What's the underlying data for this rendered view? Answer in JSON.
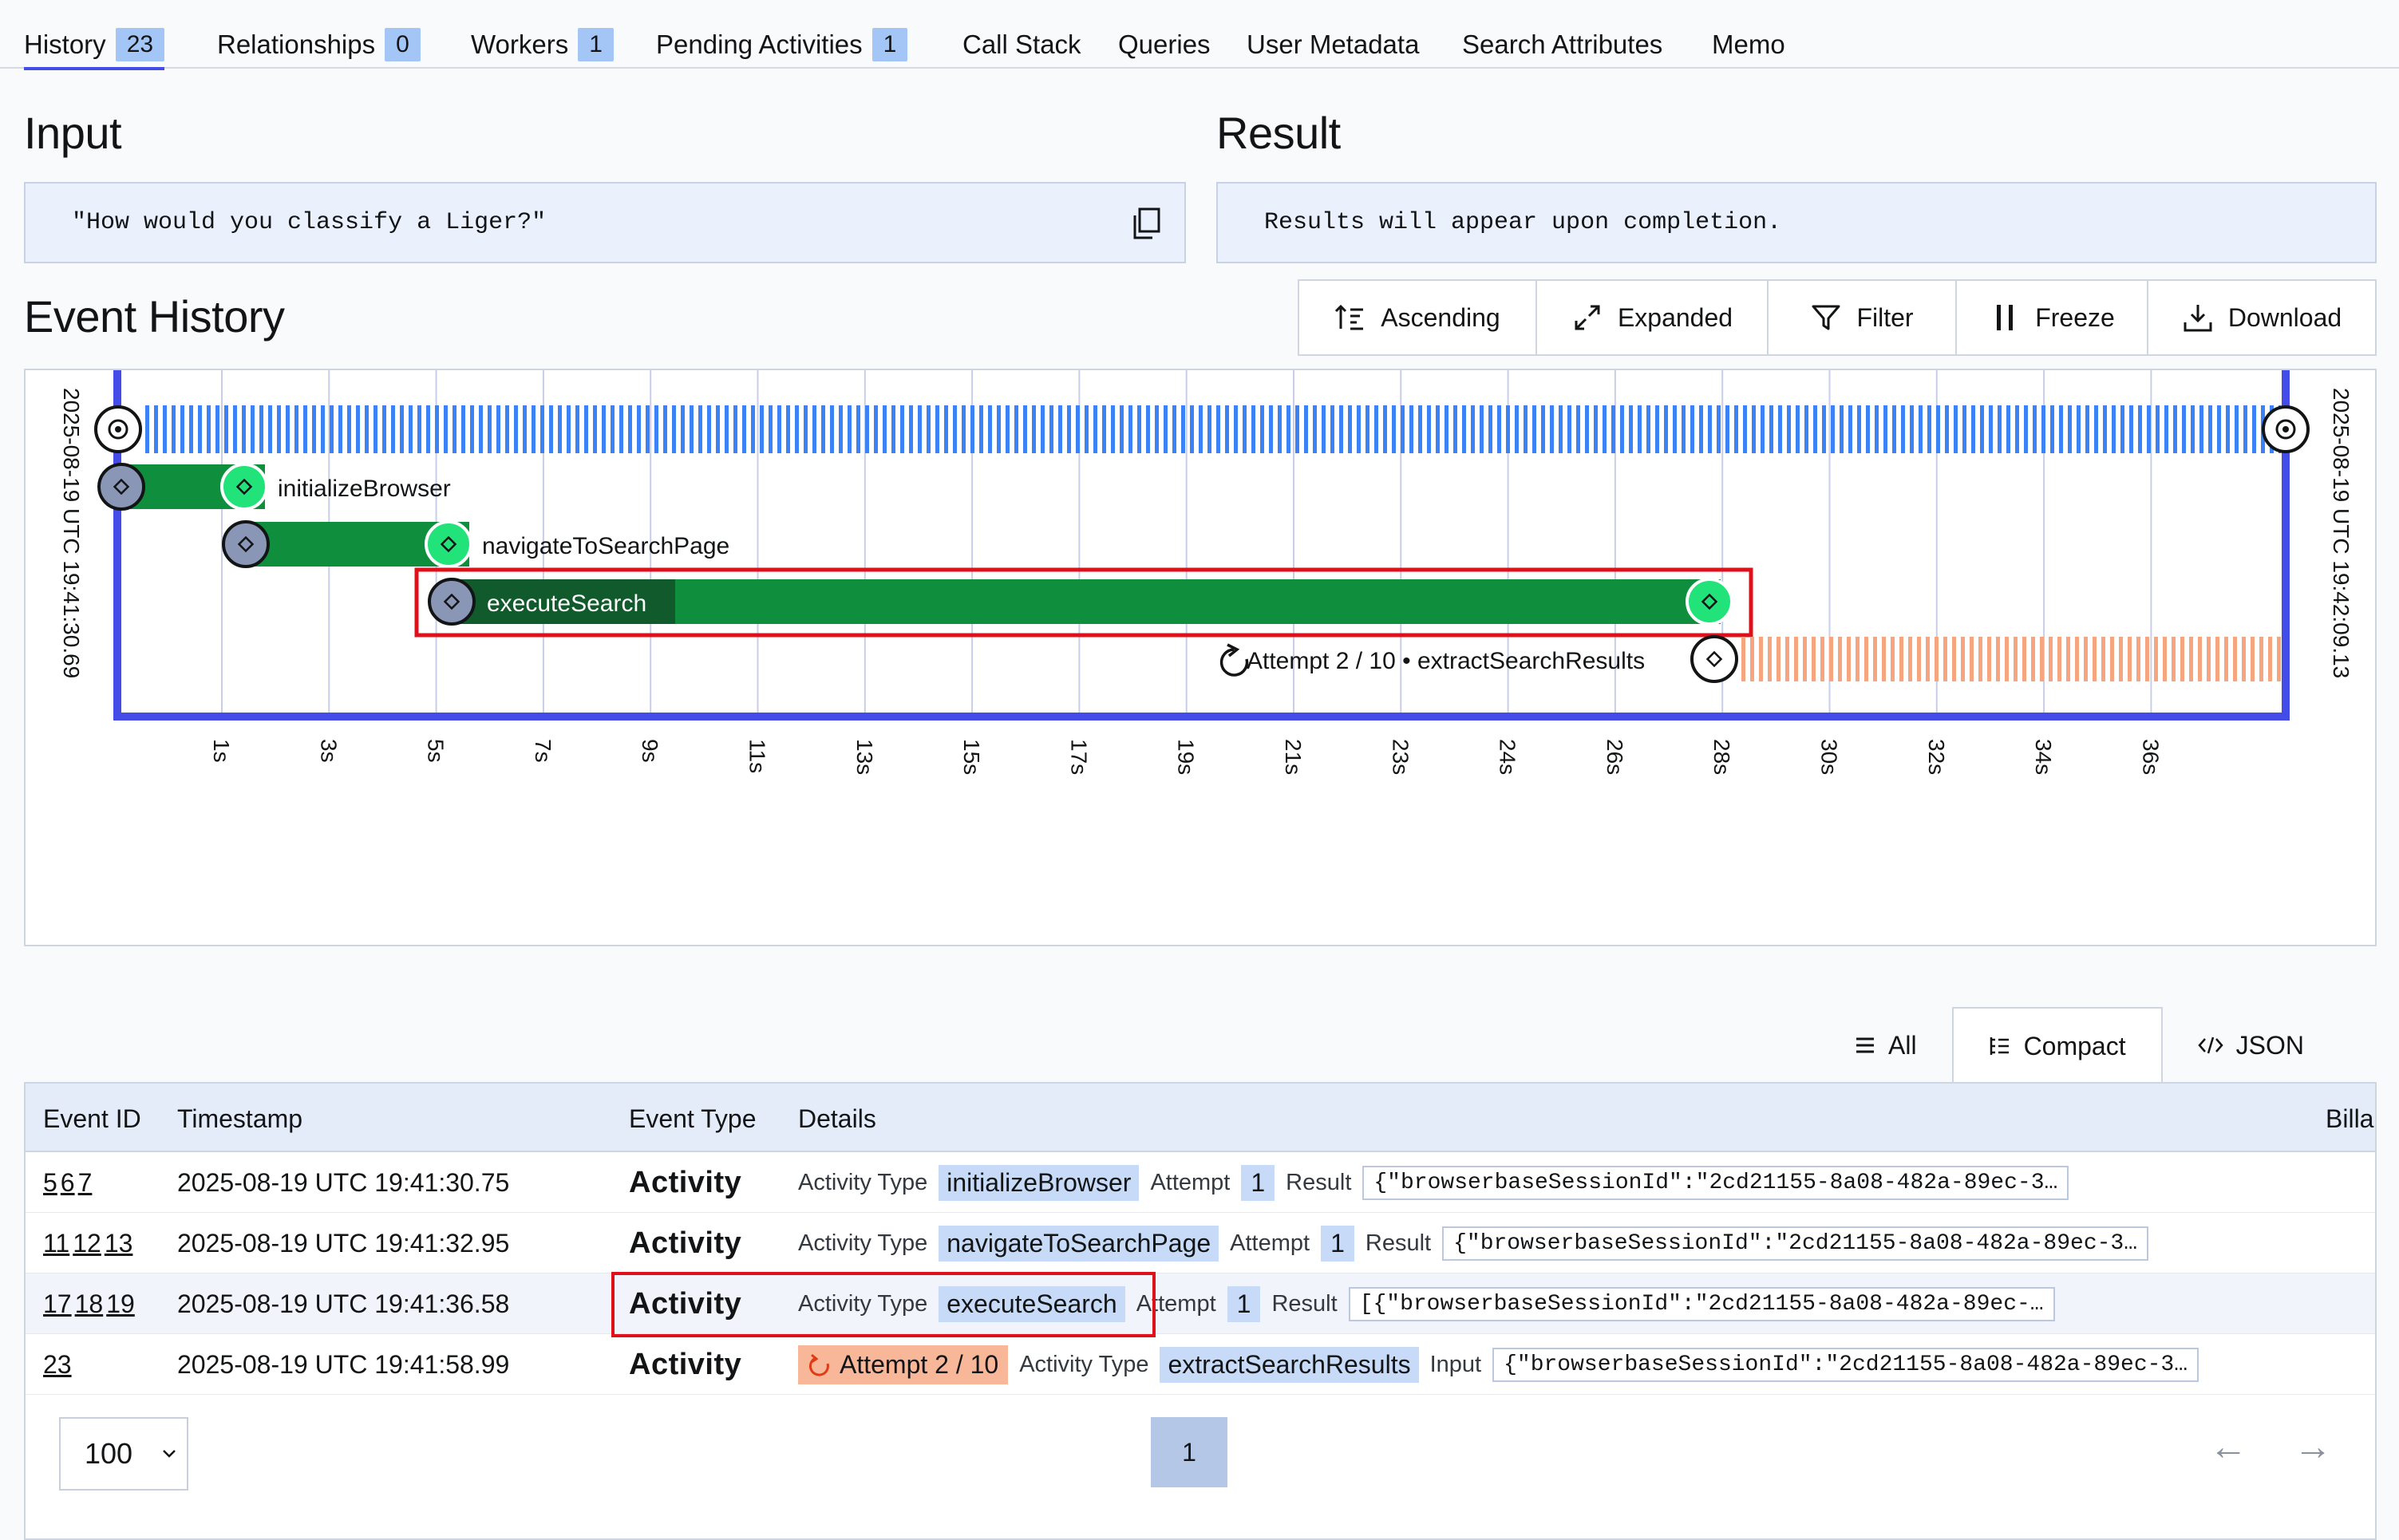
{
  "tabs": [
    {
      "label": "History",
      "badge": "23"
    },
    {
      "label": "Relationships",
      "badge": "0"
    },
    {
      "label": "Workers",
      "badge": "1"
    },
    {
      "label": "Pending Activities",
      "badge": "1"
    },
    {
      "label": "Call Stack"
    },
    {
      "label": "Queries"
    },
    {
      "label": "User Metadata"
    },
    {
      "label": "Search Attributes"
    },
    {
      "label": "Memo"
    }
  ],
  "input": {
    "title": "Input",
    "value": "\"How would you classify a Liger?\""
  },
  "result": {
    "title": "Result",
    "value": "Results will appear upon completion."
  },
  "event_history": {
    "title": "Event History",
    "toolbar": {
      "ascending": "Ascending",
      "expanded": "Expanded",
      "filter": "Filter",
      "freeze": "Freeze",
      "download": "Download"
    }
  },
  "timeline": {
    "start_label": "2025-08-19 UTC 19:41:30.69",
    "end_label": "2025-08-19 UTC 19:42:09.13",
    "ticks": [
      "1s",
      "3s",
      "5s",
      "7s",
      "9s",
      "11s",
      "13s",
      "15s",
      "17s",
      "19s",
      "21s",
      "23s",
      "24s",
      "26s",
      "28s",
      "30s",
      "32s",
      "34s",
      "36s"
    ],
    "activities": [
      {
        "name": "initializeBrowser"
      },
      {
        "name": "navigateToSearchPage"
      },
      {
        "name": "executeSearch"
      },
      {
        "name": "extractSearchResults",
        "attempt": "Attempt 2 / 10",
        "separator": "•"
      }
    ],
    "colors": {
      "completed": "#0f8f3e",
      "pending": "#f6a57f",
      "workflow": "#3b82f6",
      "border": "#444ce7",
      "end_marker": "#22e27a"
    }
  },
  "view_tabs": {
    "all": "All",
    "compact": "Compact",
    "json": "JSON"
  },
  "table": {
    "headers": {
      "event_id": "Event ID",
      "timestamp": "Timestamp",
      "event_type": "Event Type",
      "details": "Details",
      "billable": "Billa"
    },
    "rows": [
      {
        "ids": [
          "5",
          "6",
          "7"
        ],
        "timestamp": "2025-08-19 UTC 19:41:30.75",
        "type": "Activity",
        "activity_type_label": "Activity Type",
        "activity_type": "initializeBrowser",
        "attempt_label": "Attempt",
        "attempt": "1",
        "result_label": "Result",
        "result": "{\"browserbaseSessionId\":\"2cd21155-8a08-482a-89ec-3…"
      },
      {
        "ids": [
          "11",
          "12",
          "13"
        ],
        "timestamp": "2025-08-19 UTC 19:41:32.95",
        "type": "Activity",
        "activity_type_label": "Activity Type",
        "activity_type": "navigateToSearchPage",
        "attempt_label": "Attempt",
        "attempt": "1",
        "result_label": "Result",
        "result": "{\"browserbaseSessionId\":\"2cd21155-8a08-482a-89ec-3…"
      },
      {
        "ids": [
          "17",
          "18",
          "19"
        ],
        "timestamp": "2025-08-19 UTC 19:41:36.58",
        "type": "Activity",
        "activity_type_label": "Activity Type",
        "activity_type": "executeSearch",
        "attempt_label": "Attempt",
        "attempt": "1",
        "result_label": "Result",
        "result": "[{\"browserbaseSessionId\":\"2cd21155-8a08-482a-89ec-…"
      },
      {
        "ids": [
          "23"
        ],
        "timestamp": "2025-08-19 UTC 19:41:58.99",
        "type": "Activity",
        "attempt_badge": "Attempt 2 / 10",
        "activity_type_label": "Activity Type",
        "activity_type": "extractSearchResults",
        "input_label": "Input",
        "input": "{\"browserbaseSessionId\":\"2cd21155-8a08-482a-89ec-3…"
      }
    ]
  },
  "pagination": {
    "per_page": "100",
    "page": "1",
    "prev": "←",
    "next": "→"
  }
}
